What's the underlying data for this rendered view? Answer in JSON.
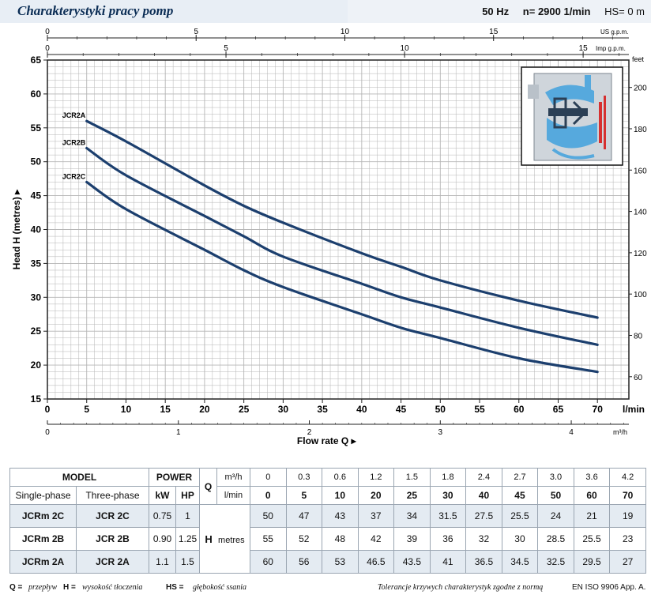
{
  "header": {
    "title": "Charakterystyki pracy pomp",
    "frequency": "50 Hz",
    "speed": "n= 2900  1/min",
    "suction_head": "HS= 0 m"
  },
  "chart_data": {
    "type": "line",
    "title": "Charakterystyki pracy pomp",
    "xlabel": "Flow rate Q",
    "x_unit": "l/min",
    "xlim": [
      0,
      74
    ],
    "xticks": [
      0,
      5,
      10,
      15,
      20,
      25,
      30,
      35,
      40,
      45,
      50,
      55,
      60,
      65,
      70
    ],
    "ylabel": "Head H (metres)",
    "ylim": [
      15,
      65
    ],
    "yticks": [
      15,
      20,
      25,
      30,
      35,
      40,
      45,
      50,
      55,
      60,
      65
    ],
    "grid": true,
    "secondary_axes": {
      "us_gpm": {
        "label": "US g.p.m.",
        "range": [
          0,
          19.55
        ],
        "ticks": [
          0,
          5,
          10,
          15
        ]
      },
      "imp_gpm": {
        "label": "Imp g.p.m.",
        "range": [
          0,
          16.28
        ],
        "ticks": [
          0,
          5,
          10,
          15
        ]
      },
      "m3h": {
        "label": "m³/h",
        "range": [
          0,
          4.44
        ],
        "ticks": [
          0,
          1,
          2,
          3,
          4
        ]
      },
      "feet": {
        "label": "feet",
        "ticks": [
          60,
          80,
          100,
          120,
          140,
          160,
          180,
          200
        ]
      }
    },
    "x": [
      5,
      10,
      20,
      25,
      30,
      40,
      45,
      50,
      60,
      70
    ],
    "series": [
      {
        "name": "JCR2A",
        "values": [
          56,
          53,
          46.5,
          43.5,
          41,
          36.5,
          34.5,
          32.5,
          29.5,
          27
        ]
      },
      {
        "name": "JCR2B",
        "values": [
          52,
          48,
          42,
          39,
          36,
          32,
          30,
          28.5,
          25.5,
          23
        ]
      },
      {
        "name": "JCR2C",
        "values": [
          47,
          43,
          37,
          34,
          31.5,
          27.5,
          25.5,
          24,
          21,
          19
        ]
      }
    ],
    "colors": {
      "curve": "#1c3f6e",
      "grid": "#b5b5b5",
      "inset_water": "#56a9dd",
      "inset_accent": "#d63030"
    }
  },
  "table": {
    "model_label": "MODEL",
    "power_label": "POWER",
    "single_phase_label": "Single-phase",
    "three_phase_label": "Three-phase",
    "kw_label": "kW",
    "hp_label": "HP",
    "q_label": "Q",
    "q_unit_m3h": "m³/h",
    "q_unit_lmin": "l/min",
    "h_label": "H",
    "h_unit": "metres",
    "q_m3h": [
      "0",
      "0.3",
      "0.6",
      "1.2",
      "1.5",
      "1.8",
      "2.4",
      "2.7",
      "3.0",
      "3.6",
      "4.2"
    ],
    "q_lmin": [
      "0",
      "5",
      "10",
      "20",
      "25",
      "30",
      "40",
      "45",
      "50",
      "60",
      "70"
    ],
    "rows": [
      {
        "single": "JCRm 2C",
        "three": "JCR 2C",
        "kw": "0.75",
        "hp": "1",
        "h": [
          "50",
          "47",
          "43",
          "37",
          "34",
          "31.5",
          "27.5",
          "25.5",
          "24",
          "21",
          "19"
        ]
      },
      {
        "single": "JCRm 2B",
        "three": "JCR 2B",
        "kw": "0.90",
        "hp": "1.25",
        "h": [
          "55",
          "52",
          "48",
          "42",
          "39",
          "36",
          "32",
          "30",
          "28.5",
          "25.5",
          "23"
        ]
      },
      {
        "single": "JCRm 2A",
        "three": "JCR 2A",
        "kw": "1.1",
        "hp": "1.5",
        "h": [
          "60",
          "56",
          "53",
          "46.5",
          "43.5",
          "41",
          "36.5",
          "34.5",
          "32.5",
          "29.5",
          "27"
        ]
      }
    ]
  },
  "footer": {
    "q_legend_symbol": "Q =",
    "q_legend_text": "przepływ",
    "h_legend_symbol": "H =",
    "h_legend_text": "wysokość tłoczenia",
    "hs_legend_symbol": "HS =",
    "hs_legend_text": "głębokość ssania",
    "tolerance_text": "Tolerancje krzywych charakterystyk zgodne z normą",
    "norm": "EN ISO 9906 App. A."
  }
}
